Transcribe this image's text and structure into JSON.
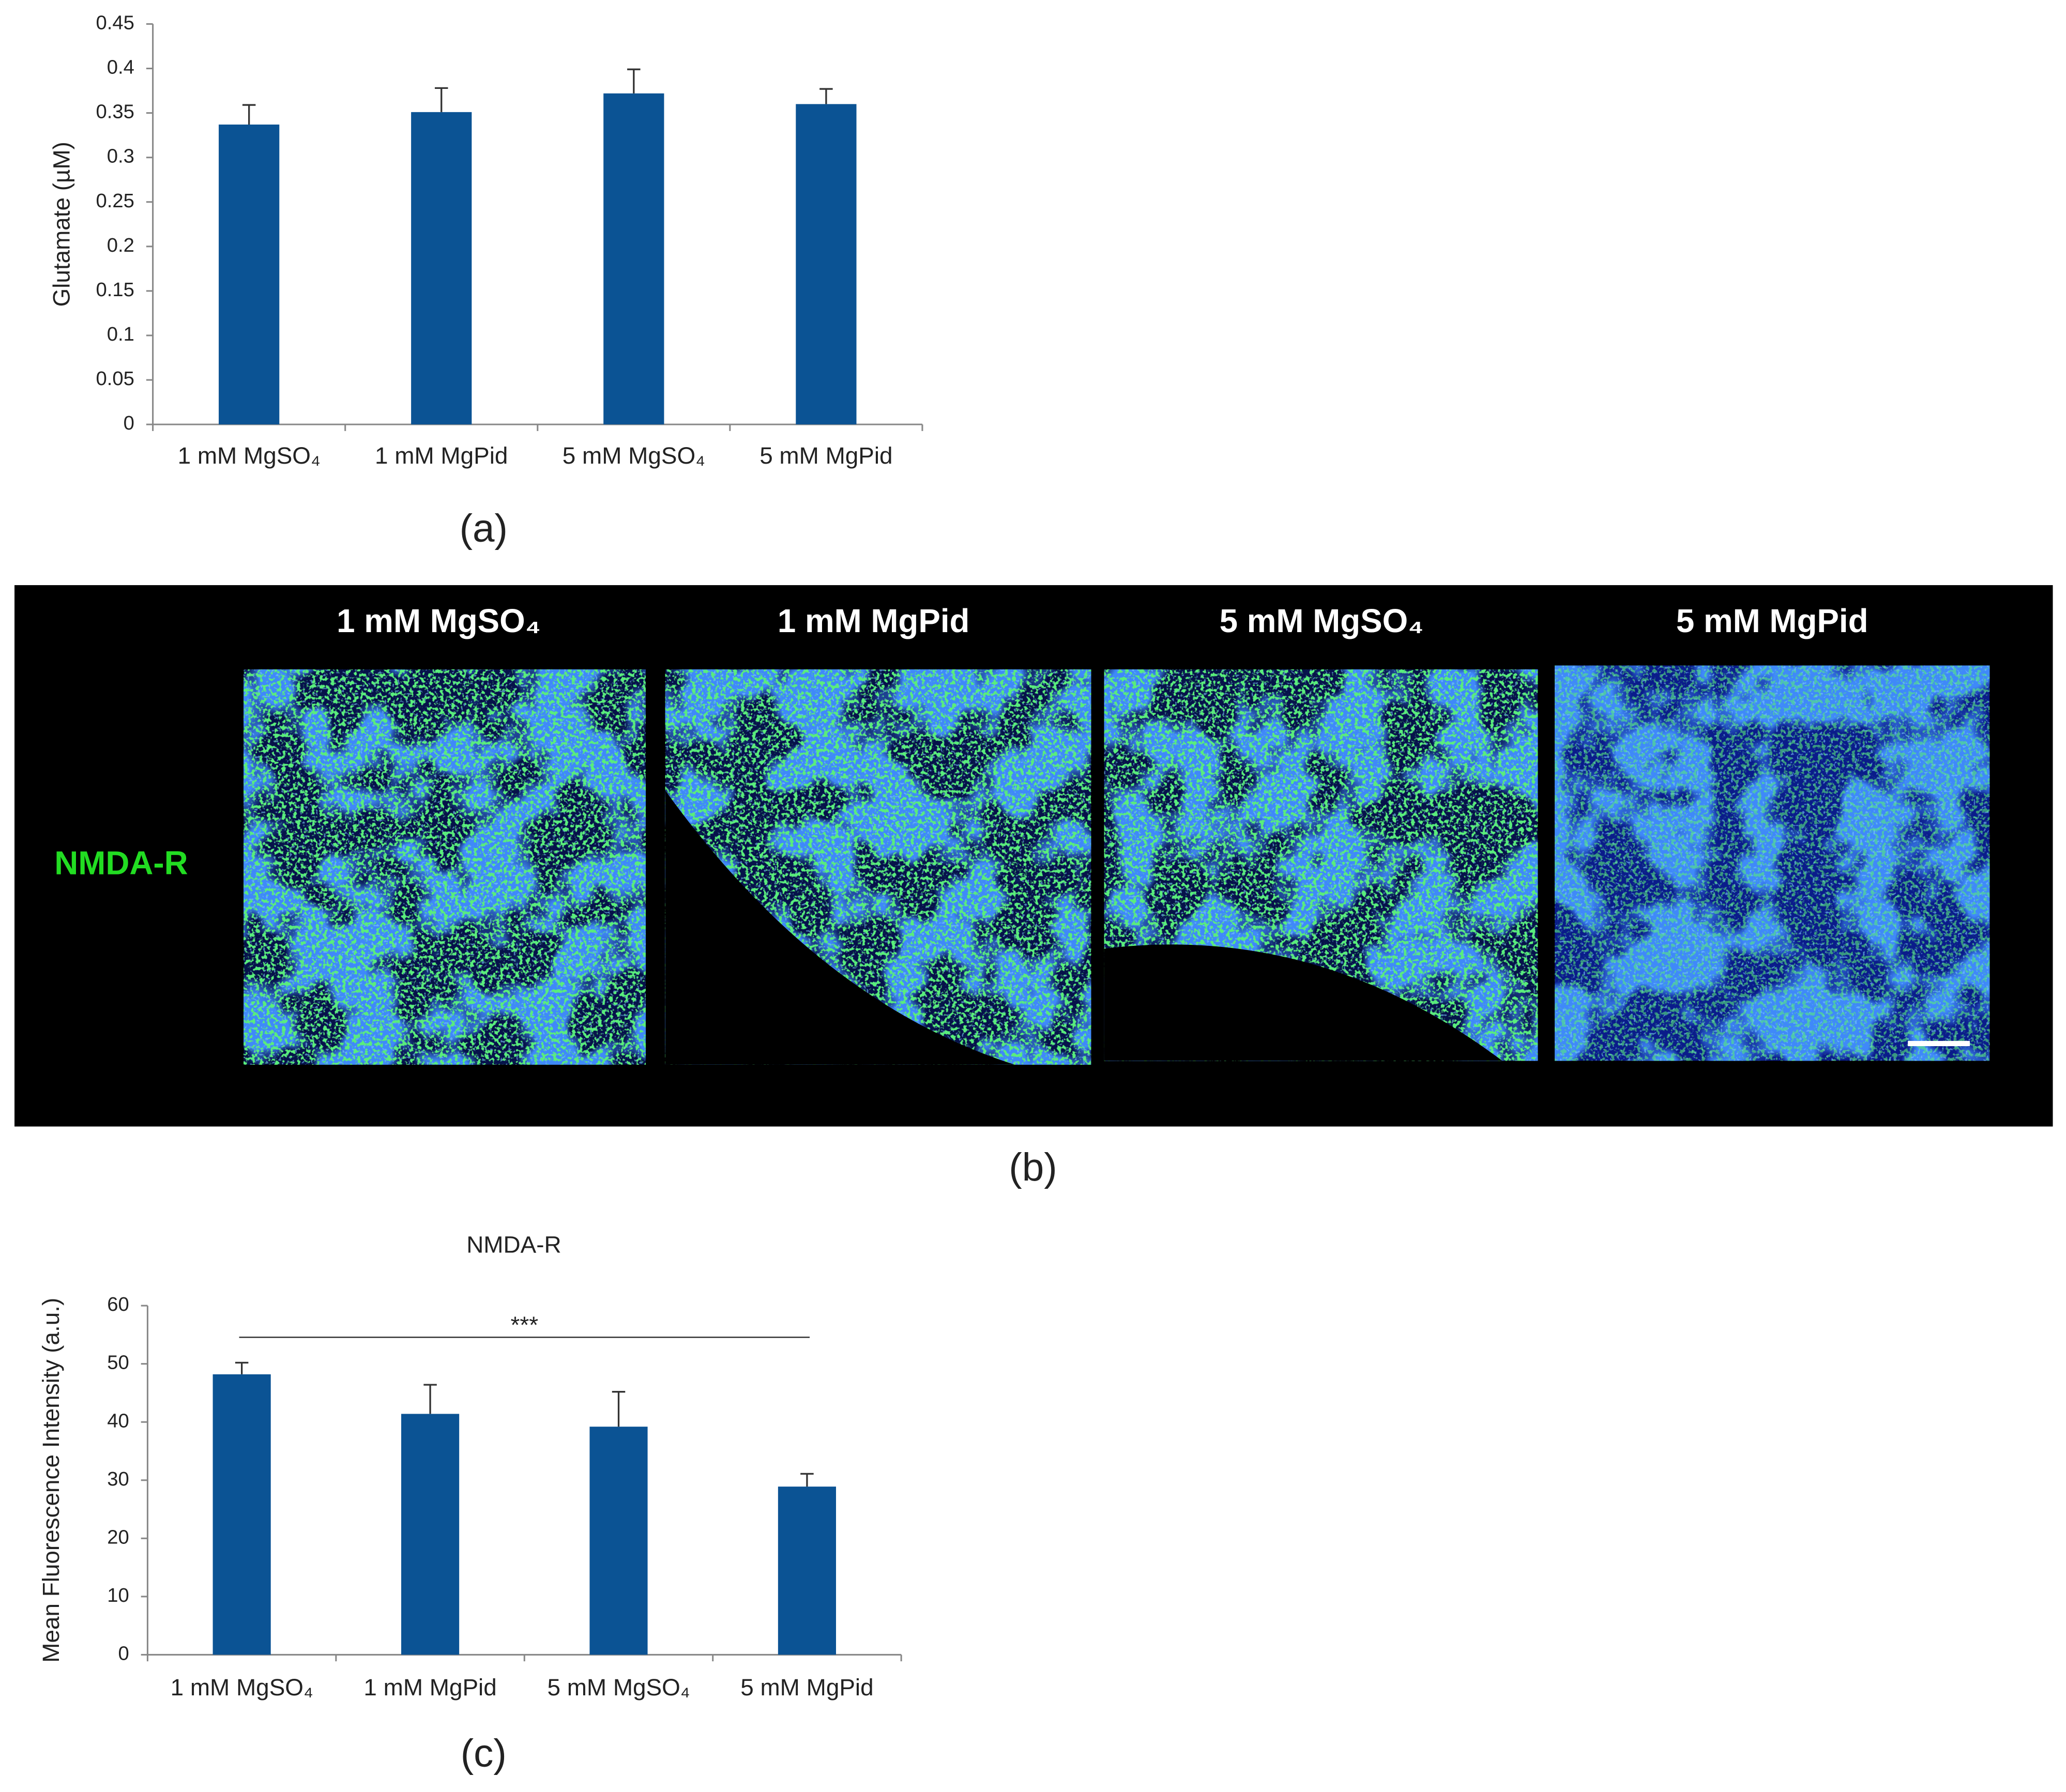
{
  "chart_data": [
    {
      "type": "bar",
      "ylabel": "Glutamate (µM)",
      "categories": [
        "1 mM MgSO₄",
        "1 mM MgPid",
        "5 mM MgSO₄",
        "5 mM MgPid"
      ],
      "values": [
        0.337,
        0.351,
        0.372,
        0.36
      ],
      "errors": [
        0.022,
        0.027,
        0.027,
        0.017
      ],
      "color": "#0b5394",
      "ylim": [
        0,
        0.45
      ],
      "yticks": [
        0,
        0.05,
        0.1,
        0.15,
        0.2,
        0.25,
        0.3,
        0.35,
        0.4,
        0.45
      ]
    },
    {
      "type": "bar",
      "title": "NMDA-R",
      "ylabel": "Mean Fluorescence Intensity (a.u.)",
      "annotation": "***",
      "categories": [
        "1 mM MgSO₄",
        "1 mM MgPid",
        "5 mM MgSO₄",
        "5 mM MgPid"
      ],
      "values": [
        48.2,
        41.4,
        39.2,
        28.9
      ],
      "errors": [
        2.0,
        5.0,
        6.0,
        2.2
      ],
      "color": "#0b5394",
      "ylim": [
        0,
        60
      ],
      "yticks": [
        0,
        10,
        20,
        30,
        40,
        50,
        60
      ]
    }
  ],
  "panel_b": {
    "row_label": "NMDA-R",
    "columns": [
      "1 mM MgSO₄",
      "1 mM MgPid",
      "5 mM MgSO₄",
      "5 mM MgPid"
    ]
  },
  "panel_labels": [
    "(a)",
    "(b)",
    "(c)"
  ]
}
